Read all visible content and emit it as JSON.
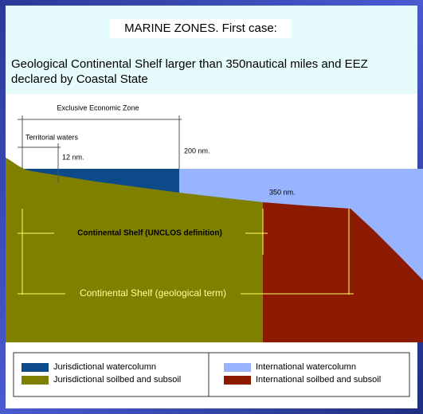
{
  "header": {
    "title": "MARINE ZONES. First case:",
    "subtitle_lines": [
      "Geological Continental Shelf larger than 350nautical miles and EEZ",
      "declared by Coastal State"
    ]
  },
  "diagram": {
    "labels": {
      "eez": "Exclusive Economic Zone",
      "territorial": "Territorial waters",
      "nm12": "12 nm.",
      "nm200": "200 nm.",
      "nm350": "350 nm.",
      "shelf_unclos": "Continental Shelf (UNCLOS definition)",
      "shelf_geo": "Continental Shelf (geological term)"
    }
  },
  "legend": {
    "items": [
      {
        "label": "Jurisdictional watercolumn",
        "color": "#0d4a8a"
      },
      {
        "label": "Jurisdictional soilbed and subsoil",
        "color": "#808000"
      },
      {
        "label": "International watercolumn",
        "color": "#99b4ff"
      },
      {
        "label": "International soilbed and subsoil",
        "color": "#8b1a00"
      }
    ]
  }
}
